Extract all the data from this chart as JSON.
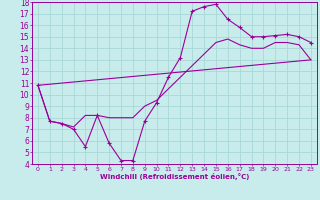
{
  "xlabel": "Windchill (Refroidissement éolien,°C)",
  "bg_color": "#c8ecec",
  "grid_color": "#a8d8d8",
  "line_color": "#990099",
  "xlim": [
    -0.5,
    23.5
  ],
  "ylim": [
    4,
    18
  ],
  "xticks": [
    0,
    1,
    2,
    3,
    4,
    5,
    6,
    7,
    8,
    9,
    10,
    11,
    12,
    13,
    14,
    15,
    16,
    17,
    18,
    19,
    20,
    21,
    22,
    23
  ],
  "yticks": [
    4,
    5,
    6,
    7,
    8,
    9,
    10,
    11,
    12,
    13,
    14,
    15,
    16,
    17,
    18
  ],
  "curve_main_x": [
    0,
    1,
    2,
    3,
    4,
    5,
    6,
    7,
    8,
    9,
    10,
    11,
    12,
    13,
    14,
    15,
    16,
    17,
    18,
    19,
    20,
    21,
    22,
    23
  ],
  "curve_main_y": [
    10.8,
    7.7,
    7.5,
    7.0,
    5.5,
    8.2,
    5.8,
    4.3,
    4.3,
    7.7,
    9.3,
    11.5,
    13.2,
    17.2,
    17.6,
    17.8,
    16.5,
    15.8,
    15.0,
    15.0,
    15.1,
    15.2,
    15.0,
    14.5
  ],
  "curve_env_x": [
    0,
    1,
    2,
    3,
    4,
    5,
    6,
    7,
    8,
    9,
    10,
    11,
    12,
    13,
    14,
    15,
    16,
    17,
    18,
    19,
    20,
    21,
    22,
    23
  ],
  "curve_env_y": [
    10.8,
    7.7,
    7.5,
    7.2,
    8.2,
    8.2,
    8.0,
    8.0,
    8.0,
    9.0,
    9.5,
    10.5,
    11.5,
    12.5,
    13.5,
    14.5,
    14.8,
    14.3,
    14.0,
    14.0,
    14.5,
    14.5,
    14.3,
    13.0
  ],
  "curve_line_x": [
    0,
    23
  ],
  "curve_line_y": [
    10.8,
    13.0
  ]
}
